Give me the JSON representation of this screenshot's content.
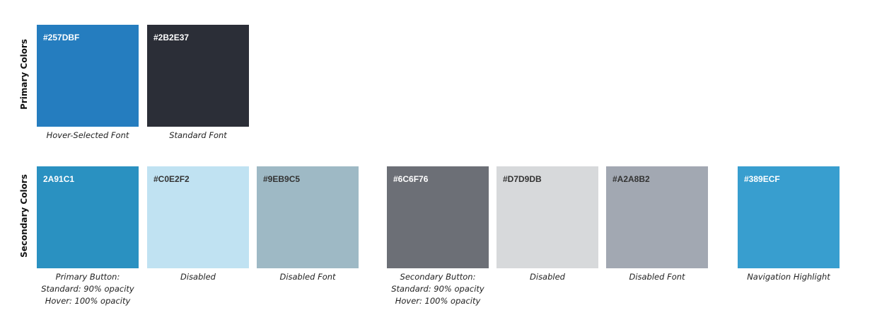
{
  "sections": {
    "primary_label": "Primary Colors",
    "secondary_label": "Secondary Colors"
  },
  "primary": [
    {
      "hex_label": "#257DBF",
      "color": "#257DBF",
      "text_color": "#ffffff",
      "caption": [
        "Hover-Selected Font"
      ]
    },
    {
      "hex_label": "#2B2E37",
      "color": "#2B2E37",
      "text_color": "#ffffff",
      "caption": [
        "Standard Font"
      ]
    }
  ],
  "secondary": [
    {
      "hex_label": "2A91C1",
      "color": "#2A91C1",
      "text_color": "#ffffff",
      "caption": [
        "Primary Button:",
        "Standard: 90% opacity",
        "Hover: 100% opacity"
      ]
    },
    {
      "hex_label": "#C0E2F2",
      "color": "#C0E2F2",
      "text_color": "#333333",
      "caption": [
        "Disabled"
      ]
    },
    {
      "hex_label": "#9EB9C5",
      "color": "#9EB9C5",
      "text_color": "#333333",
      "caption": [
        "Disabled Font"
      ]
    },
    {
      "hex_label": "#6C6F76",
      "color": "#6C6F76",
      "text_color": "#ffffff",
      "caption": [
        "Secondary Button:",
        "Standard: 90% opacity",
        "Hover: 100% opacity"
      ]
    },
    {
      "hex_label": "#D7D9DB",
      "color": "#D7D9DB",
      "text_color": "#333333",
      "caption": [
        "Disabled"
      ]
    },
    {
      "hex_label": "#A2A8B2",
      "color": "#A2A8B2",
      "text_color": "#333333",
      "caption": [
        "Disabled Font"
      ]
    },
    {
      "hex_label": "#389ECF",
      "color": "#389ECF",
      "text_color": "#ffffff",
      "caption": [
        "Navigation Highlight"
      ]
    }
  ]
}
